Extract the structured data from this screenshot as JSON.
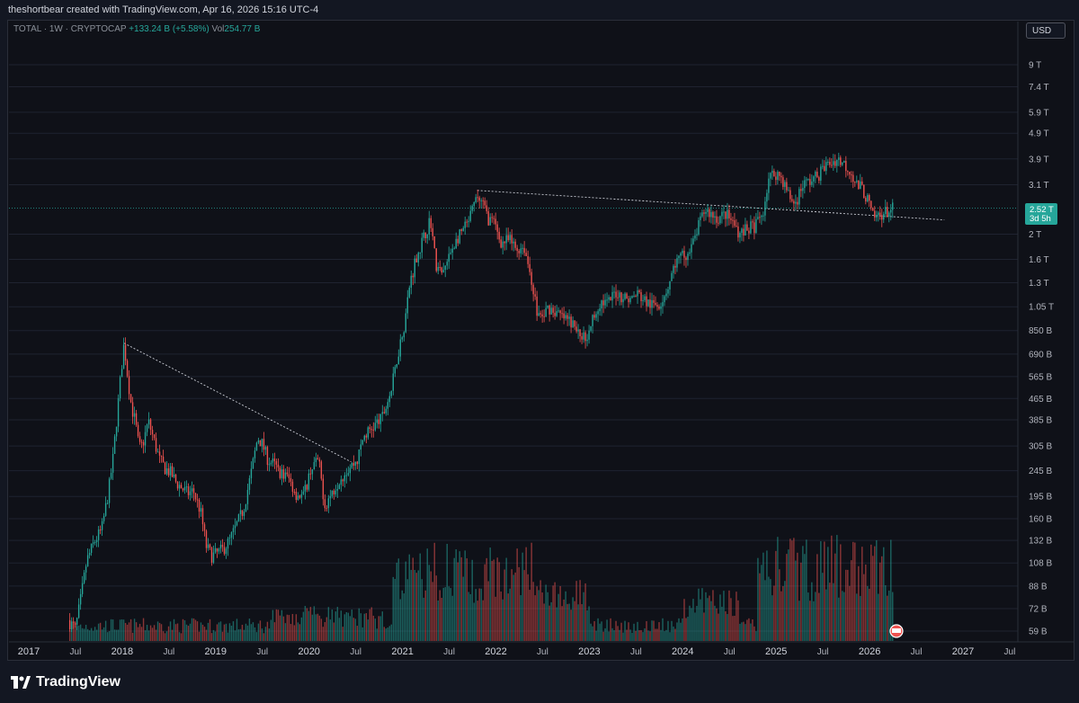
{
  "header": {
    "credit": "theshortbear created with TradingView.com, Apr 16, 2026 15:16 UTC-4"
  },
  "symbol": {
    "name": "TOTAL · 1W · CRYPTOCAP",
    "change": "+133.24 B (+5.58%)",
    "vol_label": "Vol",
    "vol_value": "254.77 B"
  },
  "currency_button": "USD",
  "price_badge": {
    "value": "2.52 T",
    "countdown": "3d 5h"
  },
  "brand": "TradingView",
  "colors": {
    "up": "#26a69a",
    "down": "#ef5350",
    "grid": "#1f2330",
    "bg": "#0f1118"
  },
  "chart_data": {
    "type": "candlestick",
    "y_scale": "log",
    "y_ticks": [
      {
        "label": "9 T",
        "v": 9000
      },
      {
        "label": "7.4 T",
        "v": 7400
      },
      {
        "label": "5.9 T",
        "v": 5900
      },
      {
        "label": "4.9 T",
        "v": 4900
      },
      {
        "label": "3.9 T",
        "v": 3900
      },
      {
        "label": "3.1 T",
        "v": 3100
      },
      {
        "label": "2 T",
        "v": 2000
      },
      {
        "label": "1.6 T",
        "v": 1600
      },
      {
        "label": "1.3 T",
        "v": 1300
      },
      {
        "label": "1.05 T",
        "v": 1050
      },
      {
        "label": "850 B",
        "v": 850
      },
      {
        "label": "690 B",
        "v": 690
      },
      {
        "label": "565 B",
        "v": 565
      },
      {
        "label": "465 B",
        "v": 465
      },
      {
        "label": "385 B",
        "v": 385
      },
      {
        "label": "305 B",
        "v": 305
      },
      {
        "label": "245 B",
        "v": 245
      },
      {
        "label": "195 B",
        "v": 195
      },
      {
        "label": "160 B",
        "v": 160
      },
      {
        "label": "132 B",
        "v": 132
      },
      {
        "label": "108 B",
        "v": 108
      },
      {
        "label": "88 B",
        "v": 88
      },
      {
        "label": "72 B",
        "v": 72
      },
      {
        "label": "59 B",
        "v": 59
      }
    ],
    "x_ticks": [
      {
        "label": "2017",
        "t": 2017.0
      },
      {
        "label": "Jul",
        "t": 2017.5
      },
      {
        "label": "2018",
        "t": 2018.0
      },
      {
        "label": "Jul",
        "t": 2018.5
      },
      {
        "label": "2019",
        "t": 2019.0
      },
      {
        "label": "Jul",
        "t": 2019.5
      },
      {
        "label": "2020",
        "t": 2020.0
      },
      {
        "label": "Jul",
        "t": 2020.5
      },
      {
        "label": "2021",
        "t": 2021.0
      },
      {
        "label": "Jul",
        "t": 2021.5
      },
      {
        "label": "2022",
        "t": 2022.0
      },
      {
        "label": "Jul",
        "t": 2022.5
      },
      {
        "label": "2023",
        "t": 2023.0
      },
      {
        "label": "Jul",
        "t": 2023.5
      },
      {
        "label": "2024",
        "t": 2024.0
      },
      {
        "label": "Jul",
        "t": 2024.5
      },
      {
        "label": "2025",
        "t": 2025.0
      },
      {
        "label": "Jul",
        "t": 2025.5
      },
      {
        "label": "2026",
        "t": 2026.0
      },
      {
        "label": "Jul",
        "t": 2026.5
      },
      {
        "label": "2027",
        "t": 2027.0
      },
      {
        "label": "Jul",
        "t": 2027.5
      }
    ],
    "x_range": [
      2016.8,
      2027.5
    ],
    "close_path": [
      [
        2017.42,
        65
      ],
      [
        2017.5,
        60
      ],
      [
        2017.56,
        80
      ],
      [
        2017.62,
        110
      ],
      [
        2017.7,
        130
      ],
      [
        2017.78,
        145
      ],
      [
        2017.85,
        200
      ],
      [
        2017.9,
        270
      ],
      [
        2017.95,
        420
      ],
      [
        2017.99,
        600
      ],
      [
        2018.02,
        760
      ],
      [
        2018.06,
        560
      ],
      [
        2018.1,
        430
      ],
      [
        2018.14,
        380
      ],
      [
        2018.18,
        300
      ],
      [
        2018.22,
        310
      ],
      [
        2018.28,
        380
      ],
      [
        2018.33,
        330
      ],
      [
        2018.4,
        270
      ],
      [
        2018.46,
        250
      ],
      [
        2018.52,
        240
      ],
      [
        2018.58,
        220
      ],
      [
        2018.64,
        210
      ],
      [
        2018.7,
        200
      ],
      [
        2018.76,
        205
      ],
      [
        2018.84,
        170
      ],
      [
        2018.9,
        125
      ],
      [
        2018.96,
        115
      ],
      [
        2019.02,
        118
      ],
      [
        2019.08,
        122
      ],
      [
        2019.15,
        132
      ],
      [
        2019.22,
        150
      ],
      [
        2019.3,
        175
      ],
      [
        2019.38,
        240
      ],
      [
        2019.45,
        330
      ],
      [
        2019.5,
        310
      ],
      [
        2019.56,
        270
      ],
      [
        2019.62,
        260
      ],
      [
        2019.7,
        240
      ],
      [
        2019.78,
        230
      ],
      [
        2019.86,
        200
      ],
      [
        2019.94,
        195
      ],
      [
        2020.02,
        250
      ],
      [
        2020.1,
        270
      ],
      [
        2020.17,
        180
      ],
      [
        2020.24,
        200
      ],
      [
        2020.33,
        230
      ],
      [
        2020.42,
        250
      ],
      [
        2020.52,
        270
      ],
      [
        2020.58,
        330
      ],
      [
        2020.68,
        360
      ],
      [
        2020.78,
        390
      ],
      [
        2020.88,
        500
      ],
      [
        2020.96,
        720
      ],
      [
        2021.02,
        900
      ],
      [
        2021.08,
        1300
      ],
      [
        2021.15,
        1650
      ],
      [
        2021.22,
        1900
      ],
      [
        2021.3,
        2300
      ],
      [
        2021.36,
        1500
      ],
      [
        2021.42,
        1400
      ],
      [
        2021.48,
        1550
      ],
      [
        2021.54,
        1800
      ],
      [
        2021.62,
        2000
      ],
      [
        2021.7,
        2200
      ],
      [
        2021.8,
        2800
      ],
      [
        2021.86,
        2600
      ],
      [
        2021.92,
        2300
      ],
      [
        2021.98,
        2200
      ],
      [
        2022.06,
        1850
      ],
      [
        2022.14,
        1900
      ],
      [
        2022.22,
        1750
      ],
      [
        2022.3,
        1800
      ],
      [
        2022.38,
        1350
      ],
      [
        2022.44,
        1000
      ],
      [
        2022.5,
        950
      ],
      [
        2022.56,
        1050
      ],
      [
        2022.64,
        1000
      ],
      [
        2022.72,
        950
      ],
      [
        2022.8,
        920
      ],
      [
        2022.88,
        830
      ],
      [
        2022.96,
        800
      ],
      [
        2023.04,
        950
      ],
      [
        2023.12,
        1100
      ],
      [
        2023.2,
        1080
      ],
      [
        2023.28,
        1200
      ],
      [
        2023.36,
        1150
      ],
      [
        2023.44,
        1120
      ],
      [
        2023.52,
        1180
      ],
      [
        2023.6,
        1100
      ],
      [
        2023.68,
        1060
      ],
      [
        2023.76,
        1090
      ],
      [
        2023.84,
        1250
      ],
      [
        2023.92,
        1550
      ],
      [
        2024.0,
        1650
      ],
      [
        2024.08,
        1700
      ],
      [
        2024.16,
        2100
      ],
      [
        2024.24,
        2500
      ],
      [
        2024.3,
        2400
      ],
      [
        2024.38,
        2300
      ],
      [
        2024.46,
        2400
      ],
      [
        2024.54,
        2200
      ],
      [
        2024.62,
        2000
      ],
      [
        2024.7,
        2100
      ],
      [
        2024.78,
        2150
      ],
      [
        2024.86,
        2450
      ],
      [
        2024.92,
        3300
      ],
      [
        2025.0,
        3450
      ],
      [
        2025.06,
        3300
      ],
      [
        2025.14,
        2800
      ],
      [
        2025.2,
        2600
      ],
      [
        2025.28,
        3100
      ],
      [
        2025.36,
        3200
      ],
      [
        2025.44,
        3350
      ],
      [
        2025.52,
        3650
      ],
      [
        2025.6,
        3800
      ],
      [
        2025.66,
        3900
      ],
      [
        2025.72,
        3750
      ],
      [
        2025.8,
        3500
      ],
      [
        2025.86,
        3100
      ],
      [
        2025.92,
        3000
      ],
      [
        2025.98,
        2700
      ],
      [
        2026.04,
        2300
      ],
      [
        2026.12,
        2400
      ],
      [
        2026.2,
        2450
      ],
      [
        2026.26,
        2520
      ]
    ],
    "trendlines": [
      {
        "from": [
          2018.02,
          760
        ],
        "to": [
          2020.45,
          265
        ]
      },
      {
        "from": [
          2021.8,
          2950
        ],
        "to": [
          2026.8,
          2270
        ]
      }
    ],
    "last_price": 2520
  }
}
